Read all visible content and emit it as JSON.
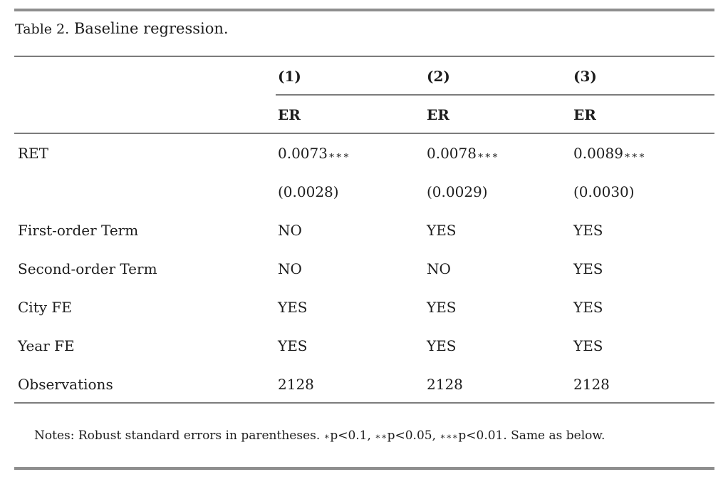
{
  "table": {
    "number_label": "Table 2.",
    "caption": "Baseline regression.",
    "col_headers": [
      "(1)",
      "(2)",
      "(3)"
    ],
    "dep_var_headers": [
      "ER",
      "ER",
      "ER"
    ],
    "rows": [
      {
        "label": "RET",
        "values": [
          "0.0073",
          "0.0078",
          "0.0089"
        ],
        "stars": [
          "∗∗∗",
          "∗∗∗",
          "∗∗∗"
        ]
      },
      {
        "label": "",
        "values": [
          "(0.0028)",
          "(0.0029)",
          "(0.0030)"
        ]
      },
      {
        "label": "First-order Term",
        "values": [
          "NO",
          "YES",
          "YES"
        ]
      },
      {
        "label": "Second-order Term",
        "values": [
          "NO",
          "NO",
          "YES"
        ]
      },
      {
        "label": "City FE",
        "values": [
          "YES",
          "YES",
          "YES"
        ]
      },
      {
        "label": "Year FE",
        "values": [
          "YES",
          "YES",
          "YES"
        ]
      },
      {
        "label": "Observations",
        "values": [
          "2128",
          "2128",
          "2128"
        ]
      }
    ],
    "notes": {
      "prefix": "Notes: Robust standard errors in parentheses. ",
      "sig1_star": "∗",
      "sig1_text": "p<0.1, ",
      "sig2_star": "∗∗",
      "sig2_text": "p<0.05, ",
      "sig3_star": "∗∗∗",
      "sig3_text": "p<0.01. Same as below."
    }
  }
}
